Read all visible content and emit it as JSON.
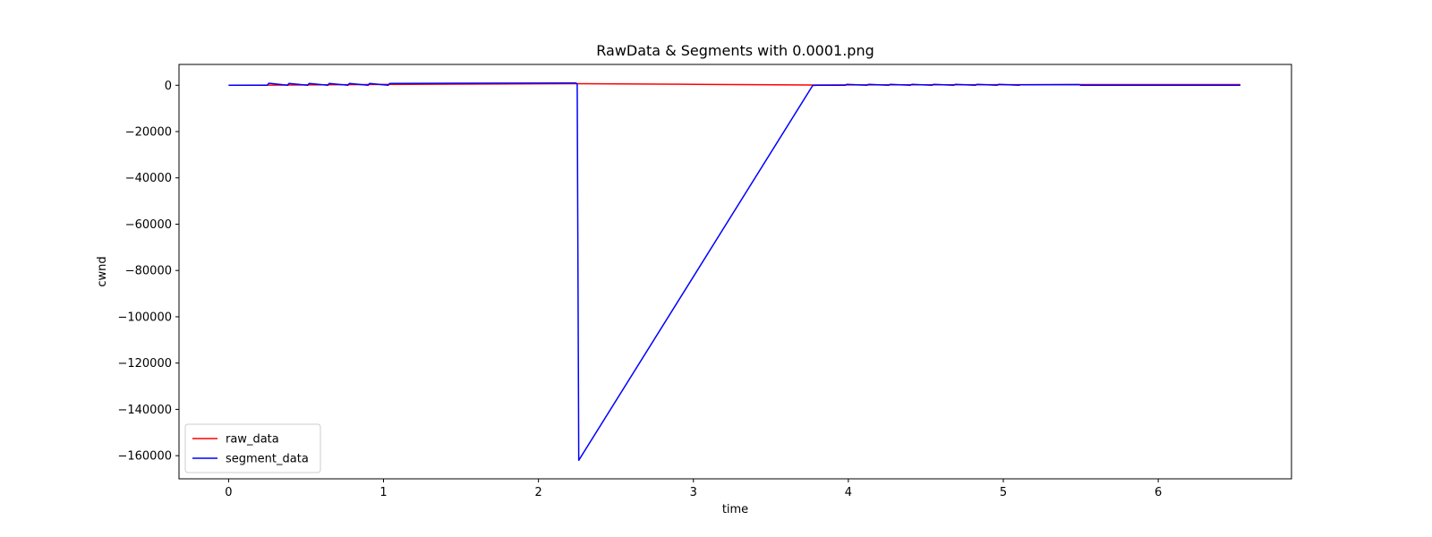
{
  "chart_data": {
    "type": "line",
    "title": "RawData & Segments with 0.0001.png",
    "xlabel": "time",
    "ylabel": "cwnd",
    "xlim": [
      -0.32,
      6.86
    ],
    "ylim": [
      -170000,
      9000
    ],
    "xticks": [
      0,
      1,
      2,
      3,
      4,
      5,
      6
    ],
    "yticks": [
      0,
      -20000,
      -40000,
      -60000,
      -80000,
      -100000,
      -120000,
      -140000,
      -160000
    ],
    "ytick_labels": [
      "0",
      "−20000",
      "−40000",
      "−60000",
      "−80000",
      "−100000",
      "−120000",
      "−140000",
      "−160000"
    ],
    "grid": false,
    "legend_position": "lower-left",
    "series": [
      {
        "name": "raw_data",
        "color": "#ff0000",
        "x": [
          0,
          0.25,
          0.5,
          0.75,
          1.0,
          1.5,
          2.0,
          2.25,
          3.0,
          3.76,
          4.0,
          4.5,
          5.0,
          5.5,
          6.0,
          6.53
        ],
        "y": [
          0,
          60,
          150,
          250,
          350,
          500,
          650,
          700,
          400,
          100,
          150,
          200,
          250,
          300,
          300,
          300
        ]
      },
      {
        "name": "segment_data",
        "color": "#0000ff",
        "x": [
          0,
          0.25,
          0.26,
          0.38,
          0.39,
          0.51,
          0.52,
          0.64,
          0.65,
          0.77,
          0.78,
          0.9,
          0.91,
          1.03,
          1.04,
          2.24,
          2.25,
          2.26,
          3.77,
          3.8,
          3.98,
          3.99,
          4.12,
          4.13,
          4.26,
          4.27,
          4.4,
          4.41,
          4.54,
          4.55,
          4.68,
          4.69,
          4.82,
          4.83,
          4.96,
          4.97,
          5.1,
          5.11,
          5.49,
          5.5,
          6.53
        ],
        "y": [
          0,
          0,
          900,
          0,
          800,
          0,
          800,
          0,
          800,
          0,
          800,
          0,
          800,
          0,
          800,
          1000,
          600,
          -162000,
          -100,
          0,
          0,
          400,
          0,
          400,
          0,
          400,
          0,
          400,
          0,
          400,
          0,
          400,
          0,
          400,
          0,
          400,
          0,
          200,
          300,
          0,
          0
        ]
      }
    ]
  }
}
